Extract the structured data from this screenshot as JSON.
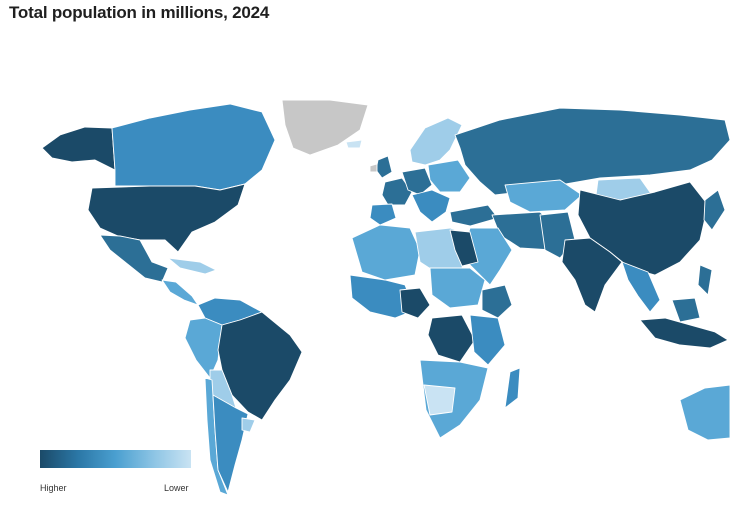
{
  "title": "Total population in millions, 2024",
  "legend": {
    "high_label": "Higher",
    "low_label": "Lower",
    "colors": [
      "#1b4a68",
      "#2b77a6",
      "#4a9fd0",
      "#8cc4e4",
      "#c9e3f3"
    ]
  },
  "colors": {
    "highest": "#1b4a68",
    "high": "#2c6f96",
    "medium": "#3b8cc0",
    "low": "#5aa8d6",
    "lowest": "#9fcde9",
    "no_data": "#c7c7c7"
  }
}
